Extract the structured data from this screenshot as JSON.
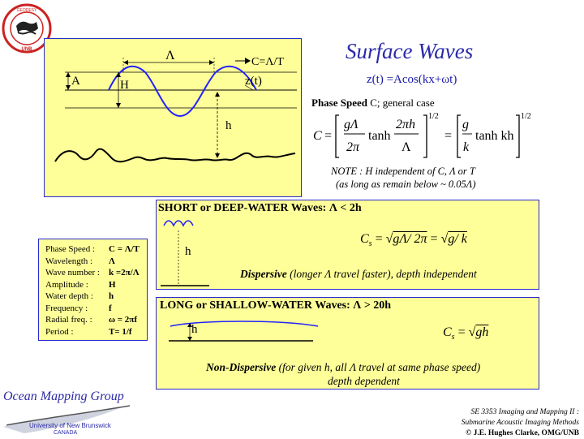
{
  "title": "Surface Waves",
  "wave_equation": "z(t) =Acos(kx+ωt)",
  "phase_speed_heading_bold": "Phase Speed",
  "phase_speed_heading_rest": " C; general case",
  "general_formula": {
    "lhs": "C",
    "t1_num": "gΛ",
    "t1_den": "2π",
    "tanh": "tanh",
    "t2_num": "2πh",
    "t2_den": "Λ",
    "exp": "1/2",
    "t3_num": "g",
    "t3_den": "k",
    "t3_tail": "tanh kh",
    "eq": "="
  },
  "note_line1": "NOTE : H independent of C, Λ or T",
  "note_line2": "(as long as remain below ~ 0.05Λ)",
  "top_diagram": {
    "lambda": "Λ",
    "speed": "C=Λ/T",
    "amp": "A",
    "height": "H",
    "zt": "z(t)",
    "depth": "h"
  },
  "deep_panel": {
    "heading": "SHORT or DEEP-WATER Waves: Λ < 2h",
    "depth": "h",
    "formula_lhs": "C",
    "formula_sub": "s",
    "formula_rhs1": "gΛ/ 2π",
    "formula_rhs2": "g/ k",
    "desc_bold": "Dispersive",
    "desc_rest": "  (longer Λ travel faster), depth independent"
  },
  "shallow_panel": {
    "heading": "LONG or SHALLOW-WATER Waves: Λ > 20h",
    "depth": "h",
    "formula_lhs": "C",
    "formula_sub": "s",
    "formula_rhs": "gh",
    "desc_bold": "Non-Dispersive",
    "desc_rest": "  (for given h, all Λ travel at same phase speed)",
    "desc_line2": "depth dependent"
  },
  "legend": [
    {
      "k": "Phase Speed :",
      "v": "C = Λ/T"
    },
    {
      "k": "Wavelength :",
      "v": "Λ"
    },
    {
      "k": "Wave number :",
      "v": "k =2π/Λ"
    },
    {
      "k": "Amplitude :",
      "v": "H"
    },
    {
      "k": "Water depth :",
      "v": "h"
    },
    {
      "k": "Frequency :",
      "v": "f"
    },
    {
      "k": "Radial freq. :",
      "v": "ω = 2πf"
    },
    {
      "k": "Period :",
      "v": "T= 1/f"
    }
  ],
  "brand": {
    "name": "Ocean Mapping Group",
    "university": "University of New Brunswick",
    "country": "CANADA",
    "seal_text": "GEODESY AND GEOMATICS ENGINEERING",
    "seal_center": "UNB",
    "name_color": "#2a2aa8"
  },
  "footer": {
    "line1": "SE 3353 Imaging and Mapping II :",
    "line2": "Submarine Acoustic Imaging Methods",
    "line3": "© J.E. Hughes Clarke, OMG/UNB"
  }
}
